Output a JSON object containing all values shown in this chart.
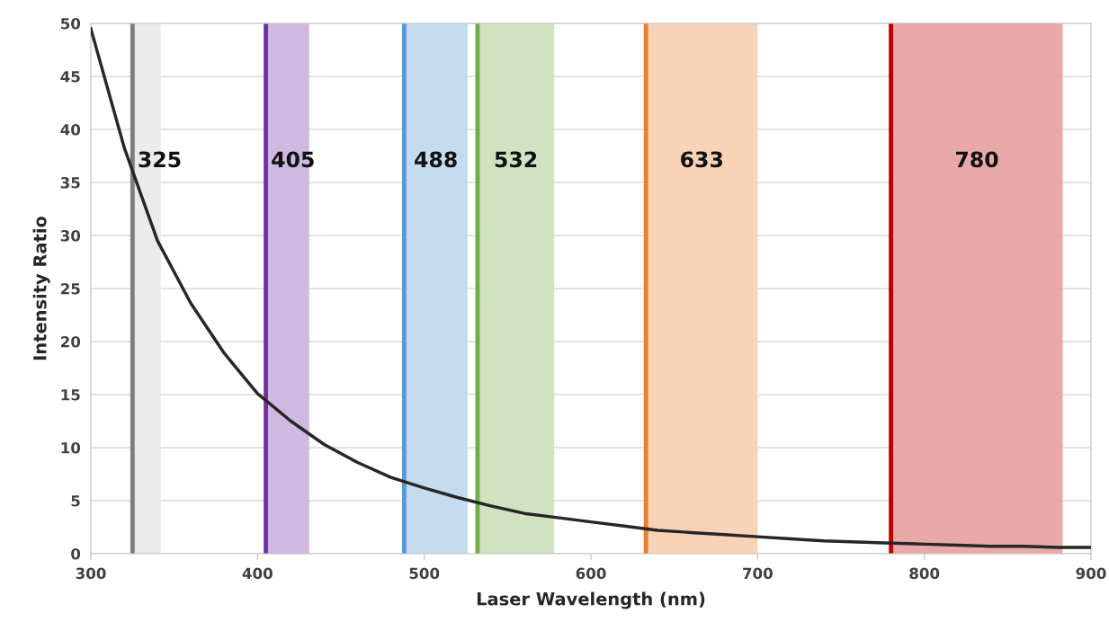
{
  "chart_data": {
    "type": "line",
    "xlabel": "Laser Wavelength (nm)",
    "ylabel": "Intensity Ratio",
    "x": [
      300,
      320,
      340,
      360,
      380,
      400,
      420,
      440,
      460,
      480,
      500,
      520,
      540,
      560,
      580,
      600,
      620,
      640,
      660,
      680,
      700,
      720,
      740,
      760,
      780,
      800,
      820,
      840,
      860,
      880,
      900
    ],
    "series": [
      {
        "color": "#262626",
        "values": [
          49.5,
          38.3,
          29.5,
          23.6,
          18.9,
          15.1,
          12.5,
          10.3,
          8.6,
          7.2,
          6.2,
          5.3,
          4.5,
          3.8,
          3.4,
          3.0,
          2.6,
          2.2,
          2.0,
          1.8,
          1.6,
          1.4,
          1.2,
          1.1,
          1.0,
          0.9,
          0.8,
          0.7,
          0.7,
          0.6,
          0.6
        ]
      }
    ],
    "xlim": [
      300,
      900
    ],
    "xticks": [
      300,
      400,
      500,
      600,
      700,
      800,
      900
    ],
    "ylim": [
      0,
      50
    ],
    "yticks": [
      0,
      5,
      10,
      15,
      20,
      25,
      30,
      35,
      40,
      45,
      50
    ],
    "grid": "y",
    "marker": "none",
    "line_style": "solid",
    "ref_lines": [
      {
        "axis": "x",
        "value": 325,
        "color": "#7f7f7f"
      },
      {
        "axis": "x",
        "value": 405,
        "color": "#7030a0"
      },
      {
        "axis": "x",
        "value": 488,
        "color": "#5b9bd5"
      },
      {
        "axis": "x",
        "value": 532,
        "color": "#70ad47"
      },
      {
        "axis": "x",
        "value": 633,
        "color": "#ed7d31"
      },
      {
        "axis": "x",
        "value": 780,
        "color": "#c00000"
      }
    ],
    "bands": [
      {
        "axis": "x",
        "from": 325,
        "to": 342,
        "label": "325",
        "color": "#ebebeb"
      },
      {
        "axis": "x",
        "from": 405,
        "to": 431,
        "label": "405",
        "color": "#cfb9e0"
      },
      {
        "axis": "x",
        "from": 488,
        "to": 526,
        "label": "488",
        "color": "#c5dbf0"
      },
      {
        "axis": "x",
        "from": 532,
        "to": 578,
        "label": "532",
        "color": "#d0e2c0"
      },
      {
        "axis": "x",
        "from": 633,
        "to": 700,
        "label": "633",
        "color": "#f8d3b8"
      },
      {
        "axis": "x",
        "from": 780,
        "to": 883,
        "label": "780",
        "color": "#e9a9a9"
      }
    ]
  }
}
